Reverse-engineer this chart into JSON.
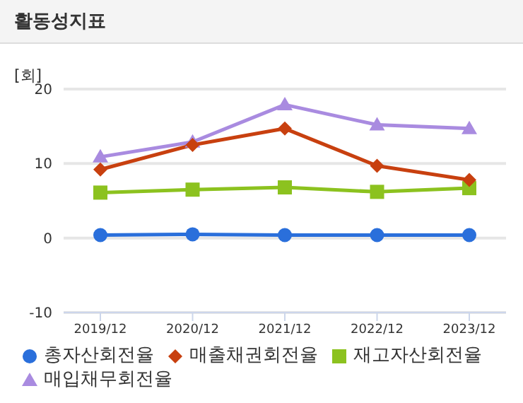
{
  "chart_data": {
    "type": "line",
    "title": "활동성지표",
    "ylabel": "[회]",
    "categories": [
      "2019/12",
      "2020/12",
      "2021/12",
      "2022/12",
      "2023/12"
    ],
    "ylim": [
      -10,
      20
    ],
    "yticks": [
      -10,
      0,
      10,
      20
    ],
    "grid": "y",
    "legend": "bottom",
    "line_style": "solid",
    "series": [
      {
        "name": "총자산회전율",
        "color": "#2a6fdb",
        "marker": "circle",
        "values": [
          0.4,
          0.5,
          0.4,
          0.4,
          0.4
        ]
      },
      {
        "name": "매출채권회전율",
        "color": "#c8400f",
        "marker": "diamond",
        "values": [
          9.2,
          12.5,
          14.7,
          9.7,
          7.8
        ]
      },
      {
        "name": "재고자산회전율",
        "color": "#8cc21f",
        "marker": "square",
        "values": [
          6.1,
          6.5,
          6.8,
          6.2,
          6.7
        ]
      },
      {
        "name": "매입채무회전율",
        "color": "#a98be0",
        "marker": "triangle",
        "values": [
          10.9,
          12.9,
          17.9,
          15.2,
          14.7
        ]
      }
    ]
  }
}
